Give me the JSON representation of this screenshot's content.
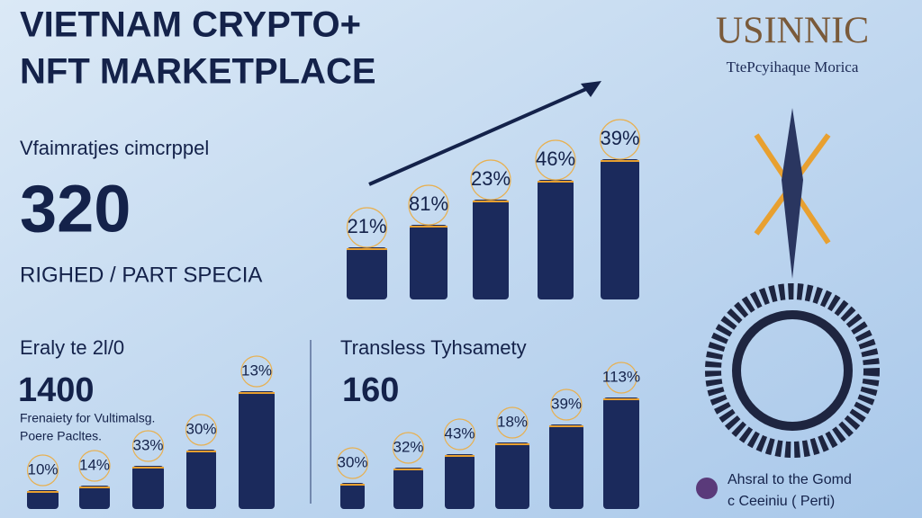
{
  "header": {
    "title_line1": "VIETNAM CRYPTO+",
    "title_line2": "NFT MARKETPLACE"
  },
  "logo": {
    "name": "USINNIC",
    "tagline": "TtePcyihaque Morica"
  },
  "top_stat": {
    "caption": "Vfaimratjes cimcrppel",
    "number": "320",
    "subtitle": "RIGHED / PART SPECIA"
  },
  "top_chart": {
    "labels": [
      "21%",
      "81%",
      "23%",
      "46%",
      "39%"
    ]
  },
  "left_panel": {
    "title": "Eraly te 2l/0",
    "number": "1400",
    "line1": "Frenaiety for Vultimalsg.",
    "line2": "Poere Pacltes.",
    "labels": [
      "10%",
      "14%",
      "33%",
      "30%",
      "13%"
    ]
  },
  "middle_panel": {
    "title": "Transless Tyhsamety",
    "number": "160",
    "labels": [
      "30%",
      "32%",
      "43%",
      "18%",
      "39%",
      "113%"
    ]
  },
  "footer_note": {
    "line1": "Ahsral to the Gomd",
    "line2": "c Ceeiniu ( Perti)"
  }
}
